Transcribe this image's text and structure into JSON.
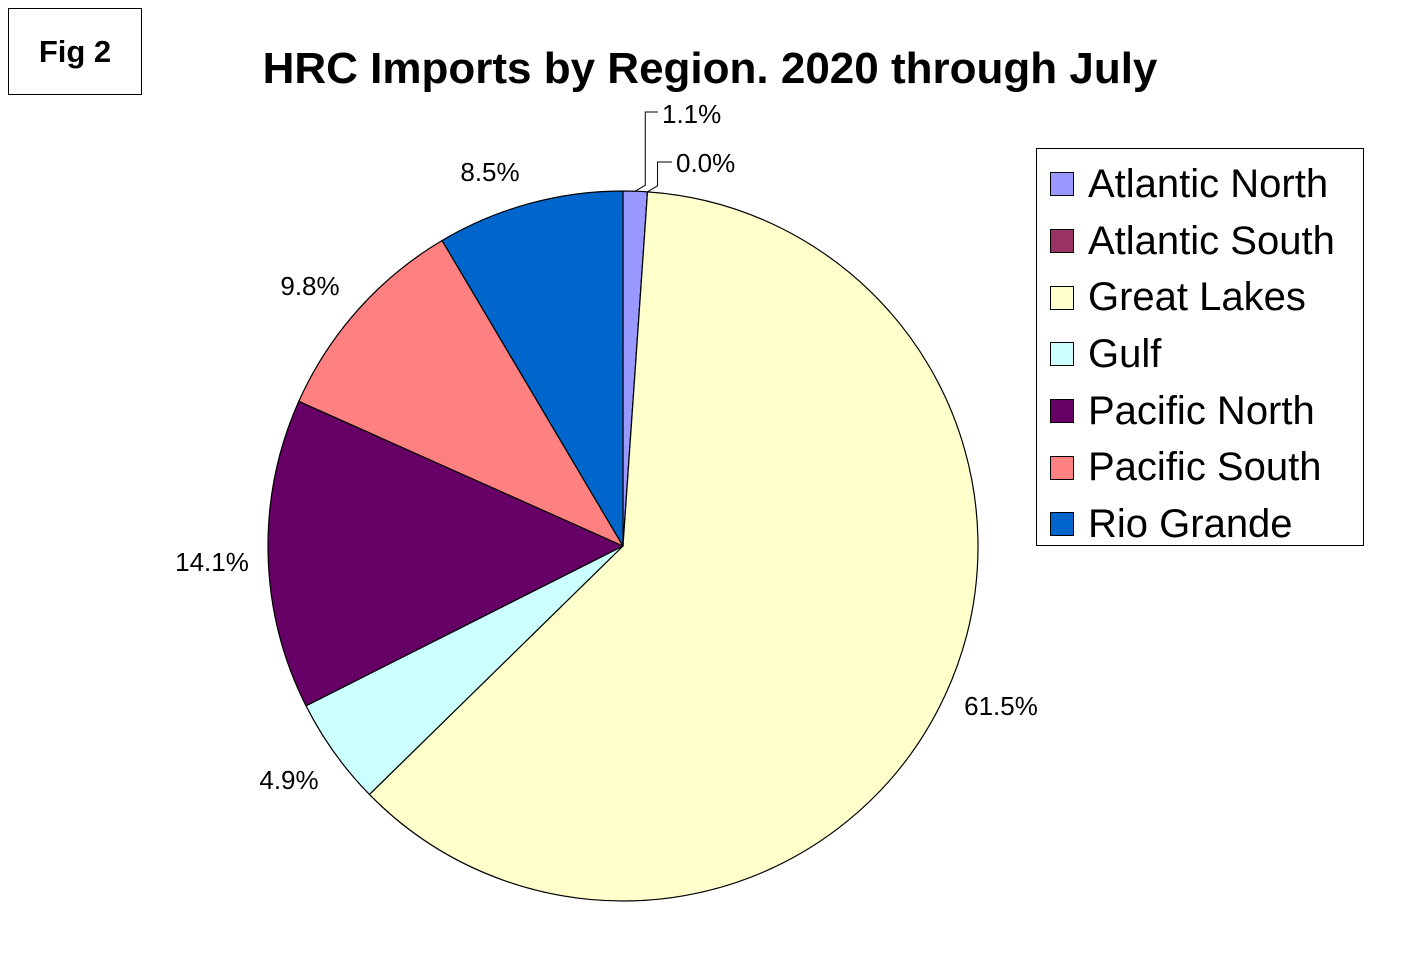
{
  "fig_label": "Fig 2",
  "chart_data": {
    "type": "pie",
    "title": "HRC Imports by Region. 2020 through July",
    "categories": [
      "Atlantic North",
      "Atlantic South",
      "Great Lakes",
      "Gulf",
      "Pacific North",
      "Pacific South",
      "Rio Grande"
    ],
    "values": [
      1.1,
      0.0,
      61.5,
      4.9,
      14.1,
      9.8,
      8.5
    ],
    "labels": [
      "1.1%",
      "0.0%",
      "61.5%",
      "4.9%",
      "14.1%",
      "9.8%",
      "8.5%"
    ],
    "colors": [
      "#9999ff",
      "#993366",
      "#ffffcc",
      "#ccffff",
      "#660066",
      "#ff8080",
      "#0066cc"
    ],
    "start_angle": "12 o'clock",
    "direction": "clockwise",
    "legend_position": "right"
  }
}
